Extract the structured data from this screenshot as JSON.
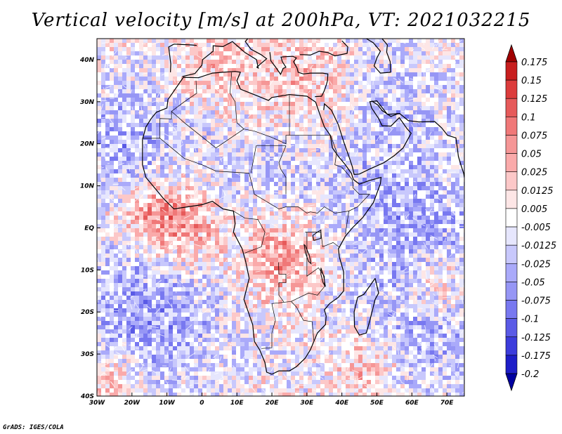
{
  "title": "Vertical velocity [m/s] at 200hPa, VT: 2021032215",
  "credit": "GrADS: IGES/COLA",
  "map": {
    "lon_range": [
      -30,
      75
    ],
    "lat_range": [
      -40,
      45
    ],
    "projection": "latlon",
    "x_ticks": [
      "30W",
      "20W",
      "10W",
      "0",
      "10E",
      "20E",
      "30E",
      "40E",
      "50E",
      "60E",
      "70E"
    ],
    "x_tick_values": [
      -30,
      -20,
      -10,
      0,
      10,
      20,
      30,
      40,
      50,
      60,
      70
    ],
    "y_ticks": [
      "40N",
      "30N",
      "20N",
      "10N",
      "EQ",
      "10S",
      "20S",
      "30S",
      "40S"
    ],
    "y_tick_values": [
      40,
      30,
      20,
      10,
      0,
      -10,
      -20,
      -30,
      -40
    ]
  },
  "colorbar": {
    "labels": [
      "0.175",
      "0.15",
      "0.125",
      "0.1",
      "0.075",
      "0.05",
      "0.025",
      "0.0125",
      "0.005",
      "-0.005",
      "-0.0125",
      "-0.025",
      "-0.05",
      "-0.075",
      "-0.1",
      "-0.125",
      "-0.175",
      "-0.2"
    ],
    "colors": [
      "#a00000",
      "#c81e1e",
      "#dc3c3c",
      "#e65a5a",
      "#f07878",
      "#f59696",
      "#faaaaa",
      "#fcc8c8",
      "#fde6e6",
      "#ffffff",
      "#e6e6fd",
      "#c8c8fc",
      "#aaaafa",
      "#9696f5",
      "#7878f0",
      "#5a5ae6",
      "#3c3cdc",
      "#1e1ec8",
      "#0000a0"
    ]
  }
}
